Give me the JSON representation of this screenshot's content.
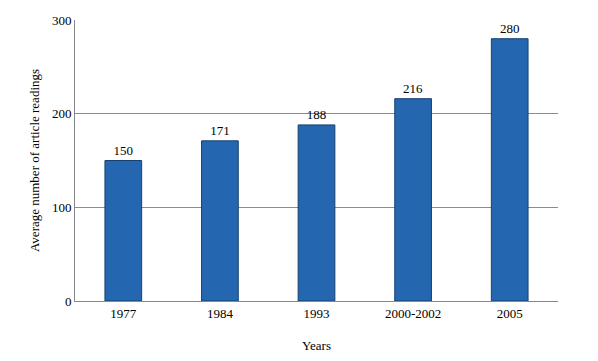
{
  "chart_data": {
    "type": "bar",
    "x_label": "Years",
    "y_label": "Average number of article readings",
    "categories": [
      "1977",
      "1984",
      "1993",
      "2000-2002",
      "2005"
    ],
    "values": [
      150,
      171,
      188,
      216,
      280
    ],
    "color": "#2566b0",
    "ylim": [
      0,
      300
    ],
    "yticks": [
      0,
      100,
      200,
      300
    ],
    "grid": true,
    "data_labels": true
  }
}
